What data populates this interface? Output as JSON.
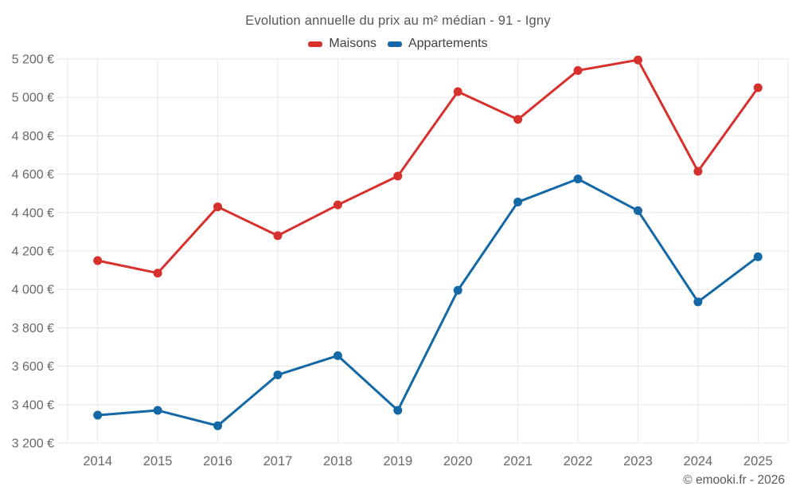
{
  "title": "Evolution annuelle du prix au m² médian - 91 - Igny",
  "legend": {
    "items": [
      {
        "label": "Maisons",
        "color": "#d7312e"
      },
      {
        "label": "Appartements",
        "color": "#1368a5"
      }
    ]
  },
  "footer": {
    "credit": "© emooki.fr - 2026"
  },
  "colors": {
    "maisons": "#d7312e",
    "appartements": "#1368a5",
    "grid": "#e7e7e7",
    "tick_text": "#66696d",
    "title_text": "#54575a",
    "legend_text": "#3c4043",
    "footer_text": "#565a5e",
    "background": "#ffffff"
  },
  "chart_data": {
    "type": "line",
    "title": "Evolution annuelle du prix au m² médian - 91 - Igny",
    "x": [
      2014,
      2015,
      2016,
      2017,
      2018,
      2019,
      2020,
      2021,
      2022,
      2023,
      2024,
      2025
    ],
    "series": [
      {
        "name": "Maisons",
        "color": "#d7312e",
        "values": [
          4150,
          4085,
          4430,
          4280,
          4440,
          4590,
          5030,
          4885,
          5140,
          5195,
          4615,
          5050
        ]
      },
      {
        "name": "Appartements",
        "color": "#1368a5",
        "values": [
          3345,
          3370,
          3290,
          3555,
          3655,
          3370,
          3995,
          4455,
          4575,
          4410,
          3935,
          4170
        ]
      }
    ],
    "xlabel": "",
    "ylabel": "",
    "ylim": [
      3200,
      5200
    ],
    "ytick_step": 200,
    "ytick_labels": [
      "3 200 €",
      "3 400 €",
      "3 600 €",
      "3 800 €",
      "4 000 €",
      "4 200 €",
      "4 400 €",
      "4 600 €",
      "4 800 €",
      "5 000 €",
      "5 200 €"
    ],
    "grid": true,
    "legend_position": "top"
  }
}
